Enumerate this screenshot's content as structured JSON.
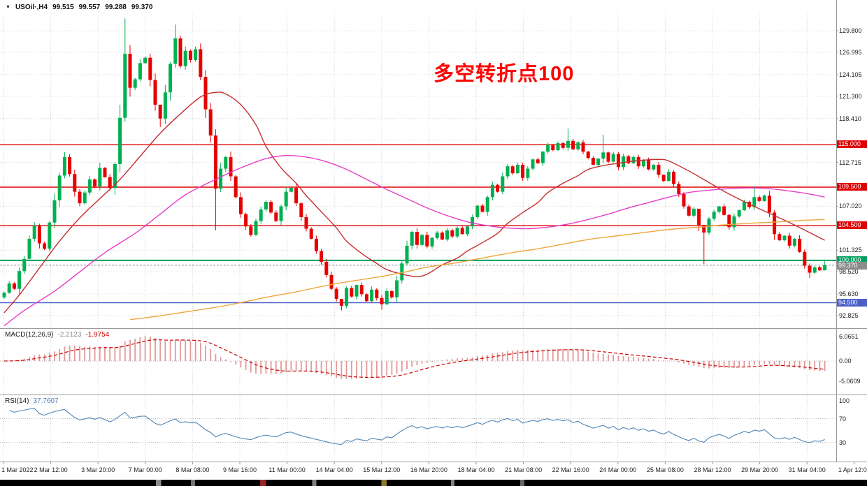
{
  "header": {
    "marker": "▼",
    "symbol_period": "USOil·,H4",
    "open": "99.515",
    "high": "99.557",
    "low": "99.288",
    "close": "99.370"
  },
  "annotation": {
    "text": "多空转折点100",
    "color": "#ff0000"
  },
  "chart_data": {
    "type": "candlestick",
    "title": "USOil,H4",
    "symbol": "USOil",
    "timeframe": "H4",
    "y_ticks": [
      {
        "label": "129.800",
        "price": 129.8
      },
      {
        "label": "126.995",
        "price": 126.995
      },
      {
        "label": "124.105",
        "price": 124.105
      },
      {
        "label": "121.300",
        "price": 121.3
      },
      {
        "label": "118.410",
        "price": 118.41
      },
      {
        "label": "112.715",
        "price": 112.715
      },
      {
        "label": "107.020",
        "price": 107.02
      },
      {
        "label": "101.325",
        "price": 101.325
      },
      {
        "label": "98.520",
        "price": 98.52
      },
      {
        "label": "95.630",
        "price": 95.63
      },
      {
        "label": "92.825",
        "price": 92.825
      }
    ],
    "hidden_grid_prices": [
      115.605,
      109.91,
      104.215
    ],
    "x_labels": [
      "1 Mar 2022",
      "2 Mar 12:00",
      "3 Mar 20:00",
      "7 Mar 00:00",
      "8 Mar 08:00",
      "9 Mar 16:00",
      "11 Mar 00:00",
      "14 Mar 04:00",
      "15 Mar 12:00",
      "16 Mar 20:00",
      "18 Mar 04:00",
      "21 Mar 08:00",
      "22 Mar 16:00",
      "24 Mar 00:00",
      "25 Mar 08:00",
      "28 Mar 12:00",
      "29 Mar 20:00",
      "31 Mar 04:00",
      "1 Apr 12:00"
    ],
    "horizontal_lines": [
      {
        "label": "115.000",
        "price": 115.0,
        "color": "#e00000",
        "width": 1.4
      },
      {
        "label": "109.500",
        "price": 109.5,
        "color": "#e00000",
        "width": 1.4
      },
      {
        "label": "104.500",
        "price": 104.5,
        "color": "#e00000",
        "width": 1.4
      },
      {
        "label": "100.000",
        "price": 100.0,
        "color": "#00a05f",
        "width": 2
      },
      {
        "label": "94.500",
        "price": 94.5,
        "color": "#4a5fc8",
        "width": 1.4
      }
    ],
    "current_price_line": {
      "label": "99.370",
      "price": 99.37,
      "color": "#8c8c8c"
    },
    "candles": {
      "up_color": "#00b050",
      "down_color": "#e60000",
      "first_open": 95.2,
      "closes": [
        95.8,
        97.0,
        96.3,
        98.6,
        100.2,
        102.8,
        104.5,
        102.2,
        101.5,
        104.9,
        107.8,
        111.0,
        113.4,
        111.2,
        108.9,
        107.4,
        108.8,
        110.5,
        109.6,
        112.0,
        110.8,
        109.4,
        112.5,
        118.5,
        126.8,
        122.4,
        123.5,
        125.6,
        126.3,
        123.4,
        120.2,
        118.4,
        121.8,
        125.5,
        128.8,
        125.2,
        127.2,
        126.0,
        127.4,
        123.8,
        119.6,
        116.2,
        109.3,
        111.9,
        113.4,
        110.9,
        108.2,
        106.0,
        104.4,
        103.3,
        105.1,
        106.6,
        107.6,
        106.2,
        105.1,
        107.0,
        108.9,
        109.4,
        107.4,
        105.6,
        104.1,
        102.8,
        101.2,
        99.8,
        98.1,
        96.3,
        95.0,
        94.1,
        96.4,
        95.3,
        96.8,
        95.6,
        94.7,
        96.2,
        95.1,
        94.3,
        96.0,
        95.2,
        97.4,
        99.6,
        101.9,
        103.7,
        102.0,
        103.3,
        101.8,
        102.9,
        103.6,
        102.7,
        103.9,
        103.1,
        104.2,
        103.4,
        104.4,
        105.6,
        107.1,
        106.3,
        108.2,
        109.8,
        108.9,
        110.9,
        112.2,
        111.3,
        112.4,
        110.7,
        111.9,
        113.1,
        112.6,
        114.1,
        115.0,
        114.3,
        115.2,
        114.6,
        115.5,
        114.4,
        115.3,
        114.1,
        113.3,
        112.4,
        113.2,
        114.0,
        112.8,
        113.8,
        112.1,
        113.5,
        112.6,
        113.4,
        112.2,
        113.0,
        111.8,
        112.4,
        111.1,
        110.3,
        111.5,
        109.9,
        108.6,
        107.0,
        105.8,
        106.7,
        104.6,
        103.6,
        105.4,
        106.3,
        107.0,
        105.9,
        104.3,
        105.7,
        106.5,
        107.6,
        106.9,
        108.2,
        107.7,
        108.4,
        106.2,
        103.4,
        102.6,
        103.2,
        101.9,
        102.8,
        101.1,
        99.3,
        98.4,
        99.1,
        98.7,
        99.37
      ],
      "wick_overrides": [
        [
          24,
          131.4,
          118.0
        ],
        [
          31,
          119.2,
          117.3
        ],
        [
          34,
          130.6,
          125.0
        ],
        [
          42,
          117.0,
          103.9
        ],
        [
          67,
          94.9,
          93.5
        ],
        [
          75,
          95.5,
          93.6
        ],
        [
          112,
          117.1,
          114.2
        ],
        [
          119,
          116.3,
          112.6
        ],
        [
          138,
          106.0,
          103.8
        ],
        [
          139,
          104.5,
          99.5
        ],
        [
          149,
          109.6,
          106.5
        ],
        [
          160,
          99.6,
          97.7
        ],
        [
          163,
          100.1,
          98.9
        ]
      ]
    },
    "moving_averages": [
      {
        "name": "ma-fast",
        "color": "#c62f2f",
        "points": [
          [
            0,
            93.2
          ],
          [
            3,
            95.5
          ],
          [
            7,
            99.0
          ],
          [
            11,
            102.5
          ],
          [
            15,
            105.5
          ],
          [
            19,
            108.0
          ],
          [
            23,
            110.5
          ],
          [
            27,
            113.5
          ],
          [
            31,
            116.5
          ],
          [
            35,
            119.0
          ],
          [
            39,
            121.2
          ],
          [
            42,
            121.8
          ],
          [
            44,
            121.6
          ],
          [
            47,
            120.2
          ],
          [
            50,
            117.6
          ],
          [
            52,
            114.8
          ],
          [
            55,
            112.0
          ],
          [
            58,
            110.0
          ],
          [
            60,
            108.4
          ],
          [
            63,
            106.3
          ],
          [
            66,
            104.2
          ],
          [
            68,
            102.5
          ],
          [
            71,
            100.9
          ],
          [
            74,
            99.6
          ],
          [
            76,
            98.8
          ],
          [
            79,
            98.2
          ],
          [
            82,
            97.9
          ],
          [
            84,
            98.2
          ],
          [
            87,
            99.4
          ],
          [
            90,
            100.3
          ],
          [
            92,
            101.2
          ],
          [
            95,
            102.3
          ],
          [
            98,
            103.5
          ],
          [
            100,
            104.8
          ],
          [
            103,
            106.2
          ],
          [
            106,
            107.5
          ],
          [
            108,
            108.8
          ],
          [
            111,
            110.0
          ],
          [
            114,
            111.0
          ],
          [
            116,
            111.8
          ],
          [
            119,
            112.3
          ],
          [
            122,
            112.6
          ],
          [
            124,
            112.8
          ],
          [
            127,
            113.0
          ],
          [
            130,
            113.1
          ],
          [
            132,
            112.9
          ],
          [
            136,
            111.6
          ],
          [
            140,
            110.1
          ],
          [
            144,
            108.6
          ],
          [
            148,
            107.3
          ],
          [
            152,
            106.1
          ],
          [
            156,
            104.9
          ],
          [
            160,
            103.6
          ],
          [
            163,
            102.6
          ]
        ]
      },
      {
        "name": "ma-mid",
        "color": "#e53ec8",
        "points": [
          [
            0,
            91.5
          ],
          [
            4,
            93.5
          ],
          [
            10,
            96.0
          ],
          [
            15,
            98.5
          ],
          [
            20,
            101.0
          ],
          [
            26,
            103.5
          ],
          [
            31,
            106.0
          ],
          [
            36,
            108.5
          ],
          [
            42,
            110.5
          ],
          [
            47,
            112.0
          ],
          [
            52,
            113.2
          ],
          [
            56,
            113.6
          ],
          [
            60,
            113.4
          ],
          [
            64,
            112.8
          ],
          [
            68,
            111.8
          ],
          [
            72,
            110.5
          ],
          [
            76,
            109.2
          ],
          [
            80,
            108.0
          ],
          [
            84,
            106.8
          ],
          [
            88,
            105.8
          ],
          [
            92,
            105.0
          ],
          [
            96,
            104.5
          ],
          [
            100,
            104.2
          ],
          [
            104,
            104.1
          ],
          [
            108,
            104.3
          ],
          [
            112,
            104.7
          ],
          [
            116,
            105.3
          ],
          [
            120,
            106.0
          ],
          [
            124,
            106.8
          ],
          [
            128,
            107.5
          ],
          [
            132,
            108.2
          ],
          [
            136,
            108.8
          ],
          [
            140,
            109.1
          ],
          [
            144,
            109.3
          ],
          [
            148,
            109.4
          ],
          [
            152,
            109.3
          ],
          [
            156,
            109.0
          ],
          [
            160,
            108.6
          ],
          [
            163,
            108.2
          ]
        ]
      },
      {
        "name": "ma-slow",
        "color": "#f0a43c",
        "points": [
          [
            25,
            92.3
          ],
          [
            31,
            92.8
          ],
          [
            36,
            93.3
          ],
          [
            42,
            93.9
          ],
          [
            47,
            94.5
          ],
          [
            52,
            95.2
          ],
          [
            58,
            95.9
          ],
          [
            63,
            96.6
          ],
          [
            68,
            97.2
          ],
          [
            74,
            97.8
          ],
          [
            79,
            98.4
          ],
          [
            84,
            99.1
          ],
          [
            90,
            99.7
          ],
          [
            95,
            100.3
          ],
          [
            100,
            100.9
          ],
          [
            106,
            101.5
          ],
          [
            111,
            102.1
          ],
          [
            116,
            102.7
          ],
          [
            122,
            103.2
          ],
          [
            127,
            103.6
          ],
          [
            132,
            104.0
          ],
          [
            138,
            104.3
          ],
          [
            143,
            104.6
          ],
          [
            148,
            104.8
          ],
          [
            154,
            105.0
          ],
          [
            159,
            105.2
          ],
          [
            163,
            105.3
          ]
        ]
      }
    ],
    "indicators": {
      "macd": {
        "label": "MACD(12,26,9)",
        "value": "-2.2123",
        "signal": "-1.9754",
        "params": [
          12,
          26,
          9
        ],
        "axis": [
          {
            "label": "6.0651",
            "value": 6.0651
          },
          {
            "label": "0.00",
            "value": 0
          },
          {
            "label": "-5.0609",
            "value": -5.0609
          }
        ],
        "histogram_color": "#e39898",
        "signal_color": "#cc0000"
      },
      "rsi": {
        "label": "RSI(14)",
        "value": "37.7607",
        "period": 14,
        "axis": [
          {
            "label": "100",
            "value": 100
          },
          {
            "label": "70",
            "value": 70
          },
          {
            "label": "30",
            "value": 30
          }
        ],
        "levels": [
          70,
          30
        ],
        "line_color": "#4f84b8"
      }
    }
  }
}
